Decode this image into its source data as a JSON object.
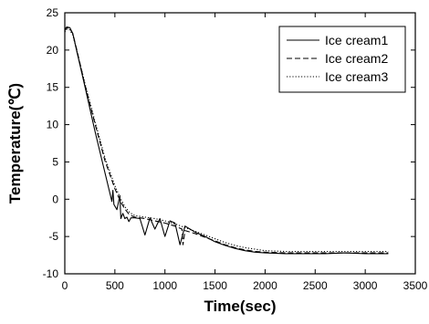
{
  "chart_data": {
    "type": "line",
    "xlabel": "Time(sec)",
    "ylabel": "Temperature(℃)",
    "xlim": [
      0,
      3500
    ],
    "ylim": [
      -10,
      25
    ],
    "xticks": [
      0,
      500,
      1000,
      1500,
      2000,
      2500,
      3000,
      3500
    ],
    "yticks": [
      -10,
      -5,
      0,
      5,
      10,
      15,
      20,
      25
    ],
    "xtick_labels": [
      "0",
      "500",
      "1000",
      "1500",
      "2000",
      "2500",
      "3000",
      "3500"
    ],
    "ytick_labels": [
      "-10",
      "-5",
      "0",
      "5",
      "10",
      "15",
      "20",
      "25"
    ],
    "grid": false,
    "legend_position": "top-right",
    "series": [
      {
        "name": "Ice cream1",
        "style": "solid",
        "color": "#000000",
        "x": [
          0,
          20,
          50,
          80,
          120,
          200,
          300,
          400,
          470,
          480,
          490,
          520,
          550,
          560,
          580,
          600,
          620,
          640,
          660,
          700,
          750,
          800,
          850,
          900,
          950,
          1000,
          1050,
          1100,
          1150,
          1200,
          1250,
          1300,
          1400,
          1500,
          1600,
          1700,
          1800,
          1900,
          2000,
          2200,
          2400,
          2600,
          2800,
          3000,
          3230
        ],
        "y": [
          22.8,
          23.1,
          23.0,
          22.2,
          19.8,
          15.2,
          9.2,
          3.6,
          -0.3,
          1.2,
          -0.7,
          -1.4,
          0.5,
          -2.6,
          -1.9,
          -2.6,
          -2.4,
          -3.0,
          -2.5,
          -2.5,
          -2.6,
          -4.8,
          -2.5,
          -4.0,
          -2.6,
          -5.0,
          -2.9,
          -3.2,
          -6.1,
          -3.6,
          -4.0,
          -4.4,
          -5.0,
          -5.7,
          -6.2,
          -6.6,
          -6.9,
          -7.1,
          -7.2,
          -7.3,
          -7.3,
          -7.3,
          -7.2,
          -7.3,
          -7.3
        ]
      },
      {
        "name": "Ice cream2",
        "style": "dashed",
        "color": "#000000",
        "x": [
          0,
          20,
          50,
          80,
          120,
          200,
          300,
          400,
          500,
          560,
          600,
          640,
          680,
          700,
          800,
          900,
          1000,
          1100,
          1170,
          1180,
          1200,
          1300,
          1400,
          1500,
          1600,
          1700,
          1800,
          1900,
          2000,
          2200,
          2400,
          2600,
          2800,
          3000,
          3230
        ],
        "y": [
          22.6,
          23.0,
          22.9,
          22.2,
          20.0,
          15.4,
          10.2,
          5.2,
          1.4,
          -0.4,
          -1.3,
          -2.0,
          -2.3,
          -2.4,
          -2.6,
          -2.9,
          -3.2,
          -3.6,
          -4.0,
          -6.1,
          -4.2,
          -4.6,
          -5.1,
          -5.6,
          -6.1,
          -6.5,
          -6.8,
          -7.0,
          -7.1,
          -7.2,
          -7.2,
          -7.2,
          -7.2,
          -7.2,
          -7.2
        ]
      },
      {
        "name": "Ice cream3",
        "style": "dotted",
        "color": "#000000",
        "x": [
          0,
          20,
          50,
          80,
          120,
          200,
          300,
          400,
          500,
          560,
          600,
          650,
          700,
          750,
          800,
          900,
          1000,
          1100,
          1200,
          1300,
          1400,
          1500,
          1600,
          1700,
          1800,
          1900,
          2000,
          2200,
          2400,
          2600,
          2800,
          3000,
          3230
        ],
        "y": [
          22.4,
          22.8,
          22.7,
          22.0,
          19.9,
          15.6,
          10.5,
          5.6,
          1.8,
          0.0,
          -1.0,
          -1.8,
          -2.2,
          -2.3,
          -2.4,
          -2.6,
          -2.9,
          -3.3,
          -3.8,
          -4.3,
          -4.8,
          -5.3,
          -5.8,
          -6.2,
          -6.5,
          -6.7,
          -6.9,
          -7.0,
          -7.0,
          -7.0,
          -7.0,
          -7.0,
          -7.0
        ]
      }
    ]
  }
}
